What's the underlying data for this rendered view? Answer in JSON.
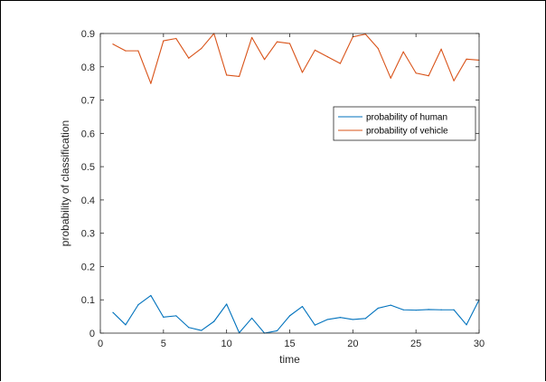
{
  "chart_data": {
    "type": "line",
    "xlabel": "time",
    "ylabel": "probability of classification",
    "xlim": [
      0,
      30
    ],
    "ylim": [
      0,
      0.9
    ],
    "xticks": [
      0,
      5,
      10,
      15,
      20,
      25,
      30
    ],
    "yticks": [
      0,
      0.1,
      0.2,
      0.3,
      0.4,
      0.5,
      0.6,
      0.7,
      0.8,
      0.9
    ],
    "grid": false,
    "legend_position": "top-right",
    "x": [
      1,
      2,
      3,
      4,
      5,
      6,
      7,
      8,
      9,
      10,
      11,
      12,
      13,
      14,
      15,
      16,
      17,
      18,
      19,
      20,
      21,
      22,
      23,
      24,
      25,
      26,
      27,
      28,
      29,
      30
    ],
    "series": [
      {
        "name": "probability of human",
        "color": "#0072BD",
        "values": [
          0.062,
          0.025,
          0.085,
          0.113,
          0.048,
          0.052,
          0.017,
          0.008,
          0.035,
          0.087,
          0.001,
          0.045,
          0.0,
          0.007,
          0.052,
          0.08,
          0.024,
          0.041,
          0.047,
          0.041,
          0.044,
          0.075,
          0.084,
          0.07,
          0.069,
          0.071,
          0.07,
          0.07,
          0.025,
          0.1
        ]
      },
      {
        "name": "probability of vehicle",
        "color": "#D95319",
        "values": [
          0.868,
          0.848,
          0.848,
          0.75,
          0.878,
          0.885,
          0.826,
          0.855,
          0.9,
          0.775,
          0.771,
          0.888,
          0.822,
          0.875,
          0.87,
          0.783,
          0.85,
          0.83,
          0.81,
          0.89,
          0.898,
          0.855,
          0.766,
          0.845,
          0.781,
          0.773,
          0.853,
          0.758,
          0.823,
          0.82
        ]
      }
    ]
  }
}
